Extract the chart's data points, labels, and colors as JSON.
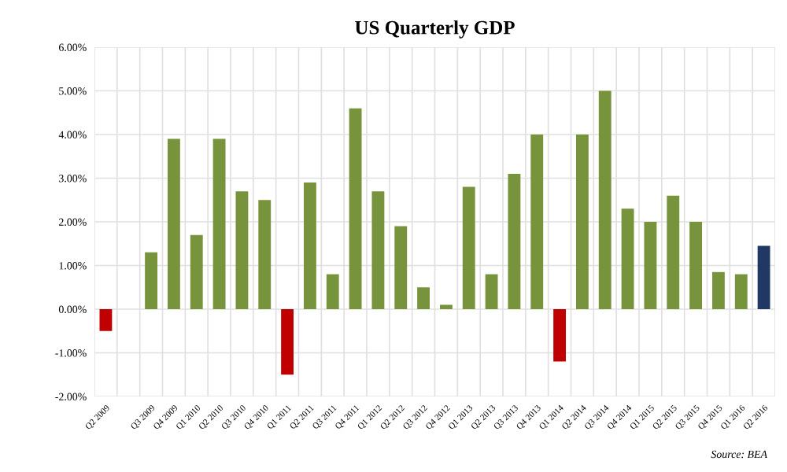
{
  "chart_data": {
    "type": "bar",
    "title": "US Quarterly GDP",
    "categories": [
      "Q2 2009",
      null,
      "Q3 2009",
      "Q4 2009",
      "Q1 2010",
      "Q2 2010",
      "Q3 2010",
      "Q4 2010",
      "Q1 2011",
      "Q2 2011",
      "Q3 2011",
      "Q4 2011",
      "Q1 2012",
      "Q2 2012",
      "Q3 2012",
      "Q4 2012",
      "Q1 2013",
      "Q2 2013",
      "Q3 2013",
      "Q4 2013",
      "Q1 2014",
      "Q2 2014",
      "Q3 2014",
      "Q4 2014",
      "Q1 2015",
      "Q2 2015",
      "Q3 2015",
      "Q4 2015",
      "Q1 2016",
      "Q2 2016"
    ],
    "values": [
      -0.5,
      null,
      1.3,
      3.9,
      1.7,
      3.9,
      2.7,
      2.5,
      -1.5,
      2.9,
      0.8,
      4.6,
      2.7,
      1.9,
      0.5,
      0.1,
      2.8,
      0.8,
      3.1,
      4.0,
      -1.2,
      4.0,
      5.0,
      2.3,
      2.0,
      2.6,
      2.0,
      0.85,
      0.8,
      1.45
    ],
    "colors": [
      "#c00000",
      "#77933c",
      "#77933c",
      "#77933c",
      "#77933c",
      "#77933c",
      "#77933c",
      "#77933c",
      "#c00000",
      "#77933c",
      "#77933c",
      "#77933c",
      "#77933c",
      "#77933c",
      "#77933c",
      "#77933c",
      "#77933c",
      "#77933c",
      "#77933c",
      "#77933c",
      "#c00000",
      "#77933c",
      "#77933c",
      "#77933c",
      "#77933c",
      "#77933c",
      "#77933c",
      "#77933c",
      "#77933c",
      "#1f3864"
    ],
    "ylim": [
      -2,
      6
    ],
    "yticks": [
      {
        "value": -2,
        "label": "-2.00%"
      },
      {
        "value": -1,
        "label": "-1.00%"
      },
      {
        "value": 0,
        "label": "0.00%"
      },
      {
        "value": 1,
        "label": "1.00%"
      },
      {
        "value": 2,
        "label": "2.00%"
      },
      {
        "value": 3,
        "label": "3.00%"
      },
      {
        "value": 4,
        "label": "4.00%"
      },
      {
        "value": 5,
        "label": "5.00%"
      },
      {
        "value": 6,
        "label": "6.00%"
      }
    ],
    "grid": true,
    "annotations": [
      "Source: BEA"
    ]
  }
}
